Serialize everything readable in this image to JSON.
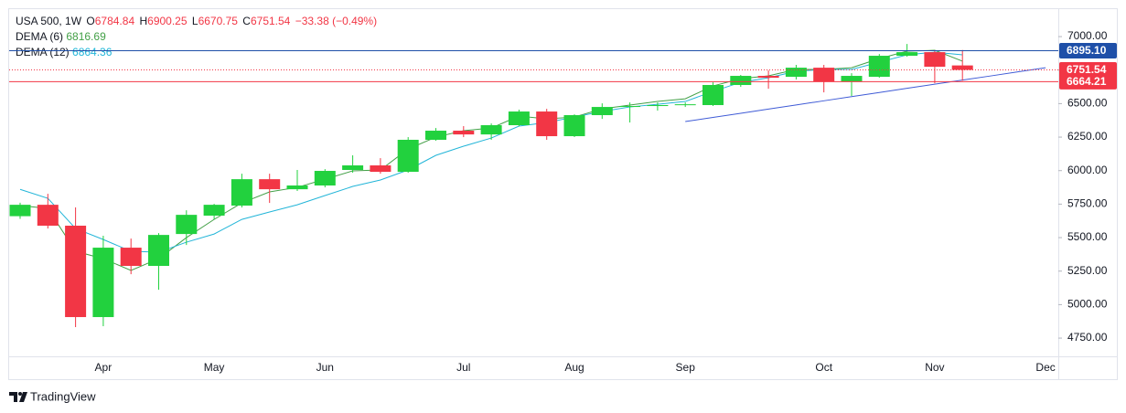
{
  "chart_data": {
    "type": "candlestick",
    "symbol": "USA 500, 1W",
    "ohlc_labels": [
      "O",
      "H",
      "L",
      "C"
    ],
    "change_text": "−33.38 (−0.49%)",
    "brand": "TradingView",
    "categories": [
      null,
      null,
      null,
      "Apr",
      null,
      null,
      null,
      "May",
      null,
      null,
      null,
      "Jun",
      null,
      null,
      null,
      null,
      "Jul",
      null,
      null,
      null,
      "Aug",
      null,
      null,
      null,
      "Sep",
      null,
      null,
      null,
      null,
      "Oct",
      null,
      null,
      null,
      "Nov",
      null,
      null,
      null,
      "Dec"
    ],
    "candles": {
      "open": [
        5660,
        5745,
        5589,
        4907,
        5425,
        5289,
        5527,
        5664,
        5739,
        5936,
        5861,
        5889,
        6005,
        6039,
        5991,
        6230,
        6298,
        6270,
        6339,
        6441,
        6257,
        6414,
        6475,
        6482,
        6489,
        6489,
        6639,
        6707,
        6700,
        6768,
        6666,
        6700,
        6857,
        6884,
        6784.84,
        null,
        null,
        null
      ],
      "high": [
        5760,
        5827,
        5725,
        5514,
        5493,
        5534,
        5704,
        5752,
        5977,
        5977,
        6005,
        6011,
        6114,
        6093,
        6250,
        6318,
        6332,
        6352,
        6455,
        6461,
        6420,
        6502,
        6509,
        6509,
        6509,
        6659,
        6714,
        6748,
        6789,
        6789,
        6727,
        6870,
        6945,
        6898,
        6900.25,
        null,
        null,
        null
      ],
      "low": [
        5640,
        5568,
        4832,
        4839,
        5227,
        5111,
        5445,
        5636,
        5725,
        5759,
        5848,
        5875,
        5984,
        5977,
        5984,
        6223,
        6250,
        6230,
        6332,
        6230,
        6250,
        6386,
        6359,
        6448,
        6475,
        6482,
        6625,
        6611,
        6680,
        6584,
        6557,
        6693,
        6850,
        6652,
        6670.75,
        null,
        null,
        null
      ],
      "close": [
        5745,
        5589,
        4907,
        5425,
        5289,
        5520,
        5670,
        5745,
        5936,
        5861,
        5889,
        5998,
        6039,
        5991,
        6230,
        6298,
        6270,
        6339,
        6441,
        6257,
        6414,
        6475,
        6482,
        6489,
        6495,
        6639,
        6707,
        6693,
        6768,
        6666,
        6707,
        6857,
        6884,
        6775,
        6751.54,
        null,
        null,
        null
      ],
      "color_up": "#22d13e",
      "color_down": "#f23645"
    },
    "series": [
      {
        "name": "DEMA (6)",
        "color": "#43a047",
        "values": [
          5739,
          5718,
          5398,
          5343,
          5255,
          5343,
          5500,
          5636,
          5759,
          5841,
          5875,
          5936,
          5998,
          6005,
          6161,
          6250,
          6298,
          6318,
          6407,
          6386,
          6400,
          6461,
          6489,
          6516,
          6536,
          6632,
          6686,
          6707,
          6755,
          6755,
          6768,
          6836,
          6891,
          6898,
          6816.69,
          null,
          null,
          null
        ]
      },
      {
        "name": "DEMA (12)",
        "color": "#22b5d8",
        "values": [
          5860,
          5793,
          5568,
          5486,
          5398,
          5391,
          5466,
          5527,
          5636,
          5691,
          5745,
          5814,
          5882,
          5930,
          6005,
          6114,
          6182,
          6243,
          6332,
          6359,
          6400,
          6441,
          6475,
          6495,
          6516,
          6591,
          6659,
          6693,
          6741,
          6755,
          6755,
          6809,
          6864,
          6884,
          6864.36,
          null,
          null,
          null
        ]
      }
    ],
    "trendline": {
      "color": "#3f5bd6",
      "values": [
        null,
        null,
        null,
        null,
        null,
        null,
        null,
        null,
        null,
        null,
        null,
        null,
        null,
        null,
        null,
        null,
        null,
        null,
        null,
        null,
        null,
        null,
        null,
        null,
        6366,
        6397,
        6428,
        6459,
        6490,
        6521,
        6552,
        6583,
        6614,
        6645,
        6676,
        6706,
        6737,
        6768
      ]
    },
    "price_lines": [
      {
        "value": 6895.1,
        "label": "6895.10",
        "color": "#1e4fa8",
        "style": "solid"
      },
      {
        "value": 6751.54,
        "color": "#f23645",
        "style": "dotted"
      },
      {
        "value": 6664.21,
        "color": "#f23645",
        "style": "solid"
      }
    ],
    "ylim": [
      4614,
      7205
    ],
    "yticks": [
      {
        "value": 4750,
        "label": "4750.00"
      },
      {
        "value": 5000,
        "label": "5000.00"
      },
      {
        "value": 5250,
        "label": "5250.00"
      },
      {
        "value": 5500,
        "label": "5500.00"
      },
      {
        "value": 5750,
        "label": "5750.00"
      },
      {
        "value": 6000,
        "label": "6000.00"
      },
      {
        "value": 6250,
        "label": "6250.00"
      },
      {
        "value": 6500,
        "label": "6500.00"
      },
      {
        "value": 6750,
        "label": "6750.00"
      },
      {
        "value": 7000,
        "label": "7000.00"
      }
    ],
    "grid": false
  }
}
